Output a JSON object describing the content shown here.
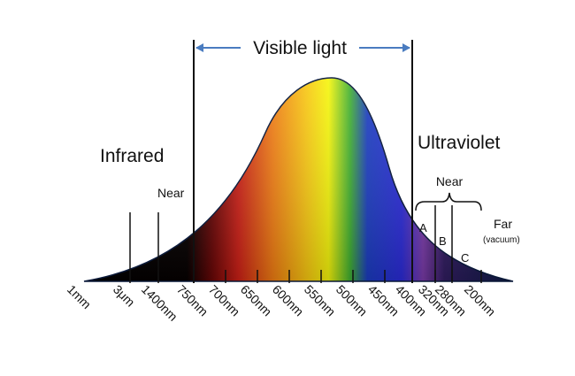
{
  "labels": {
    "visible": "Visible light",
    "infrared": "Infrared",
    "ultraviolet": "Ultraviolet",
    "near_ir": "Near",
    "near_uv": "Near",
    "far": "Far",
    "vacuum": "(vacuum)",
    "band_a": "A",
    "band_b": "B",
    "band_c": "C"
  },
  "ticks": [
    "1mm",
    "3μm",
    "1400nm",
    "750nm",
    "700nm",
    "650nm",
    "600nm",
    "550nm",
    "500nm",
    "450nm",
    "400nm",
    "320nm",
    "280nm",
    "200nm"
  ],
  "colors": {
    "arrow": "#4a7cc0",
    "curve_outline": "#0a1a3c",
    "infrared": "#000000",
    "red": "#cc1f16",
    "orange": "#f07c12",
    "yellow": "#f5f50a",
    "green": "#20a020",
    "blue": "#2a2ad8",
    "violet": "#7a3aa8",
    "ultraviolet": "#0c1a44"
  }
}
